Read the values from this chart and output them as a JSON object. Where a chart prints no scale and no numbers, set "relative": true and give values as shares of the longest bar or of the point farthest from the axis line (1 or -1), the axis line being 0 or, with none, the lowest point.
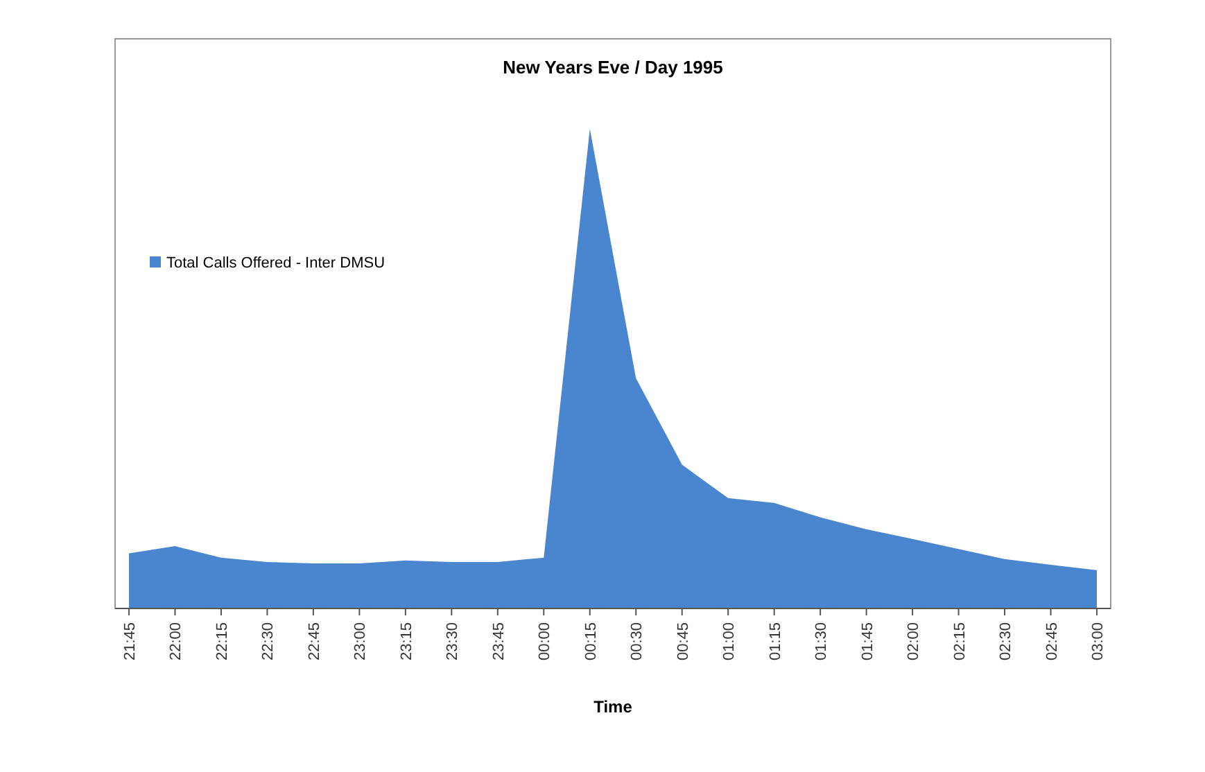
{
  "chart_data": {
    "type": "area",
    "title": "New Years Eve / Day 1995",
    "xlabel": "Time",
    "relative": true,
    "legend": "left",
    "categories": [
      "21:45",
      "22:00",
      "22:15",
      "22:30",
      "22:45",
      "23:00",
      "23:15",
      "23:30",
      "23:45",
      "00:00",
      "00:15",
      "00:30",
      "00:45",
      "01:00",
      "01:15",
      "01:30",
      "01:45",
      "02:00",
      "02:15",
      "02:30",
      "02:45",
      "03:00"
    ],
    "series": [
      {
        "name": "Total Calls Offered - Inter DMSU",
        "color": "#4a86d0",
        "values": [
          0.115,
          0.13,
          0.106,
          0.097,
          0.094,
          0.094,
          0.1,
          0.097,
          0.097,
          0.106,
          1,
          0.48,
          0.3,
          0.23,
          0.22,
          0.19,
          0.165,
          0.145,
          0.124,
          0.103,
          0.091,
          0.08
        ]
      }
    ]
  }
}
